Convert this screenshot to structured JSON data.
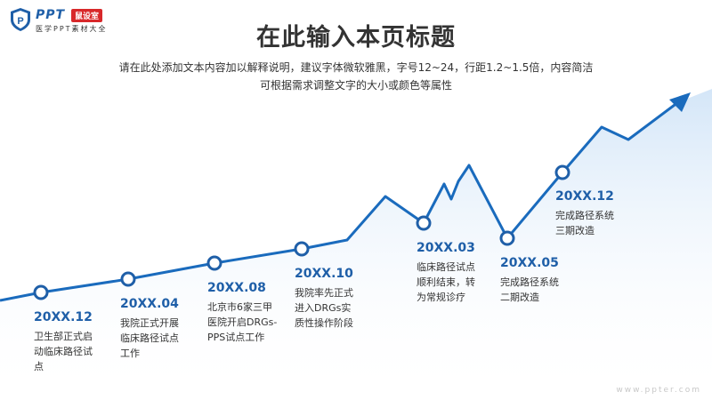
{
  "logo": {
    "ppt": "PPT",
    "badge": "鼠设室",
    "sub": "医学PPT素材大全"
  },
  "page": {
    "title": "在此输入本页标题",
    "subtitle_line1": "请在此处添加文本内容加以解释说明，建议字体微软雅黑，字号12~24，行距1.2~1.5倍，内容简洁",
    "subtitle_line2": "可根据需求调整文字的大小或颜色等属性"
  },
  "milestones": [
    {
      "date": "20XX.12",
      "desc": "卫生部正式启动临床路径试点"
    },
    {
      "date": "20XX.04",
      "desc": "我院正式开展临床路径试点工作"
    },
    {
      "date": "20XX.08",
      "desc": "北京市6家三甲医院开启DRGs-PPS试点工作"
    },
    {
      "date": "20XX.10",
      "desc": "我院率先正式进入DRGs实质性操作阶段"
    },
    {
      "date": "20XX.03",
      "desc": "临床路径试点顺利结束，转为常规诊疗"
    },
    {
      "date": "20XX.05",
      "desc": "完成路径系统二期改造"
    },
    {
      "date": "20XX.12",
      "desc": "完成路径系统三期改造"
    }
  ],
  "colors": {
    "accent": "#1f5fa8",
    "line": "#1a6bbd",
    "fill": "#dcebf9"
  },
  "watermark": "www.ppter.com"
}
